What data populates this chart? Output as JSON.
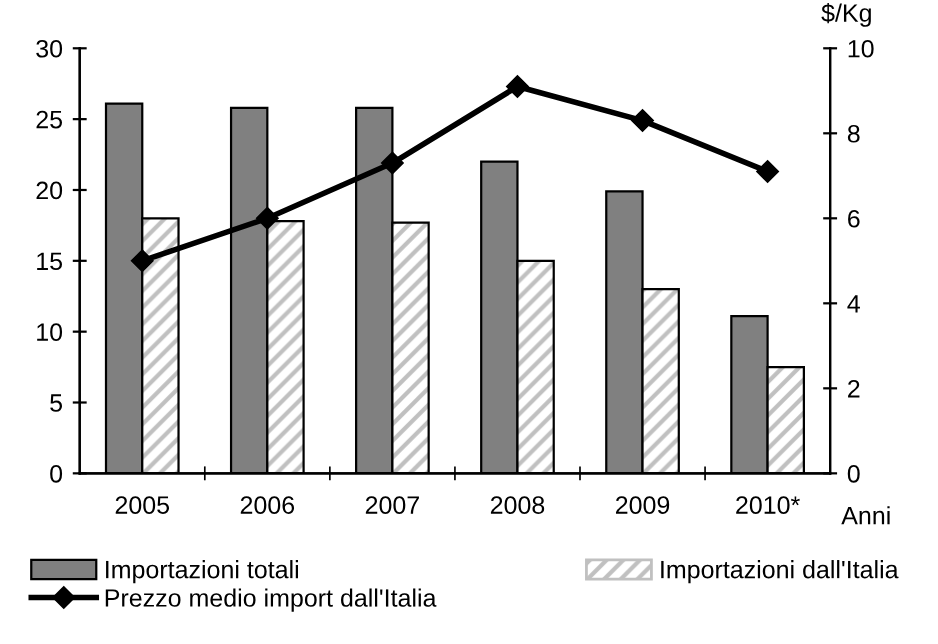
{
  "chart_data": {
    "type": "bar",
    "categories": [
      "2005",
      "2006",
      "2007",
      "2008",
      "2009",
      "2010*"
    ],
    "xlabel": "Anni",
    "y2label": "$/Kg",
    "series": [
      {
        "name": "Importazioni totali",
        "color": "#808080",
        "values": [
          26.1,
          25.8,
          25.8,
          22,
          19.9,
          11.1
        ]
      },
      {
        "name": "Importazioni dall'Italia",
        "color": "#c0c0c0",
        "values": [
          18,
          17.8,
          17.7,
          15,
          13,
          7.5
        ]
      },
      {
        "name": "Prezzo medio import dall'Italia",
        "type": "line",
        "axis": "y2",
        "color": "#000000",
        "marker": "diamond",
        "values": [
          5.0,
          6.0,
          7.3,
          9.1,
          8.3,
          7.1
        ]
      }
    ],
    "ylim": [
      0,
      30
    ],
    "yticks": [
      0,
      5,
      10,
      15,
      20,
      25,
      30
    ],
    "y2lim": [
      0,
      10
    ],
    "y2ticks": [
      0,
      2,
      4,
      6,
      8,
      10
    ],
    "grid": false,
    "legend": "bottom"
  }
}
